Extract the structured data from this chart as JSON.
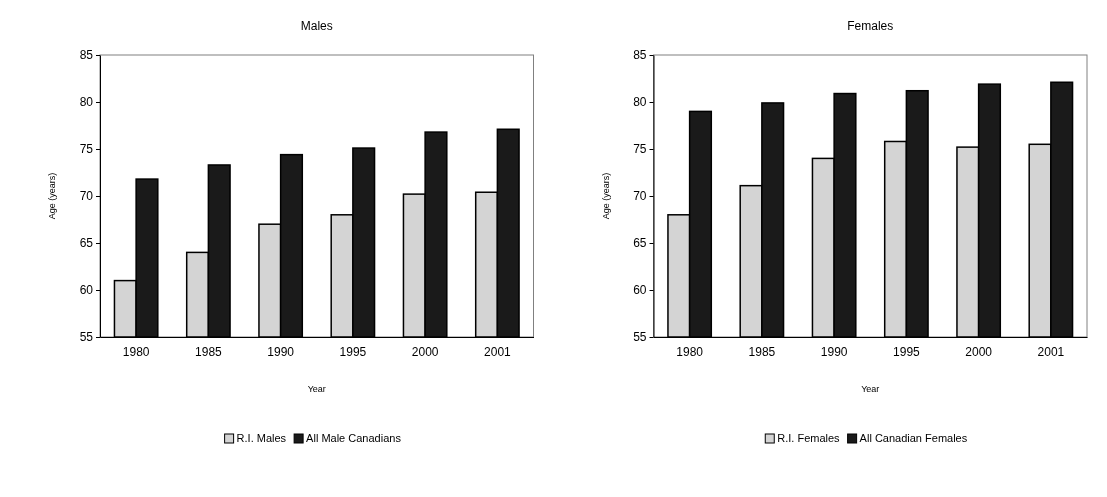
{
  "chart_data": [
    {
      "type": "bar",
      "title": "Males",
      "xlabel": "Year",
      "ylabel": "Age (years)",
      "categories": [
        "1980",
        "1985",
        "1990",
        "1995",
        "2000",
        "2001"
      ],
      "ylim": [
        55,
        85
      ],
      "yticks": [
        55,
        60,
        65,
        70,
        75,
        80,
        85
      ],
      "grid": false,
      "legend": "bottom",
      "series": [
        {
          "name": "R.I. Males",
          "color": "#d4d4d4",
          "values": [
            61,
            64,
            67,
            68,
            70.2,
            70.4
          ]
        },
        {
          "name": "All Male Canadians",
          "color": "#1a1a1a",
          "values": [
            71.8,
            73.3,
            74.4,
            75.1,
            76.8,
            77.1
          ]
        }
      ]
    },
    {
      "type": "bar",
      "title": "Females",
      "xlabel": "Year",
      "ylabel": "Age (years)",
      "categories": [
        "1980",
        "1985",
        "1990",
        "1995",
        "2000",
        "2001"
      ],
      "ylim": [
        55,
        85
      ],
      "yticks": [
        55,
        60,
        65,
        70,
        75,
        80,
        85
      ],
      "grid": false,
      "legend": "bottom",
      "series": [
        {
          "name": "R.I. Females",
          "color": "#d4d4d4",
          "values": [
            68,
            71.1,
            74,
            75.8,
            75.2,
            75.5
          ]
        },
        {
          "name": "All Canadian Females",
          "color": "#1a1a1a",
          "values": [
            79,
            79.9,
            80.9,
            81.2,
            81.9,
            82.1
          ]
        }
      ]
    }
  ]
}
